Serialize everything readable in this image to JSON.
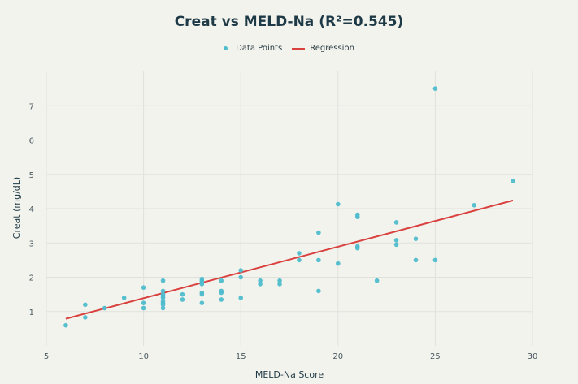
{
  "chart_data": {
    "type": "scatter",
    "title": "Creat vs MELD-Na (R²=0.545)",
    "xlabel": "MELD-Na Score",
    "ylabel": "Creat (mg/dL)",
    "xlim": [
      5,
      30
    ],
    "ylim": [
      0,
      8
    ],
    "xticks": [
      5,
      10,
      15,
      20,
      25,
      30
    ],
    "yticks": [
      1,
      2,
      3,
      4,
      5,
      6,
      7
    ],
    "grid": true,
    "legend_position": "top-center",
    "colors": {
      "points": "#4fbccc",
      "regression": "#d9413e",
      "grid": "#e1e1dc",
      "background": "#f3f3ee"
    },
    "series": [
      {
        "name": "Data Points",
        "x": [
          6,
          7,
          7,
          8,
          9,
          10,
          10,
          10,
          11,
          11,
          11,
          11,
          11,
          11,
          11,
          11,
          11,
          12,
          12,
          13,
          13,
          13,
          13,
          13,
          13,
          13,
          14,
          14,
          14,
          14,
          15,
          15,
          15,
          16,
          16,
          17,
          17,
          18,
          18,
          19,
          19,
          19,
          20,
          20,
          21,
          21,
          21,
          21,
          22,
          23,
          23,
          23,
          24,
          24,
          25,
          25,
          27,
          29
        ],
        "y": [
          0.6,
          0.83,
          1.2,
          1.1,
          1.4,
          1.7,
          1.25,
          1.1,
          1.9,
          1.6,
          1.5,
          1.45,
          1.4,
          1.3,
          1.25,
          1.2,
          1.1,
          1.5,
          1.35,
          1.95,
          1.9,
          1.85,
          1.8,
          1.55,
          1.5,
          1.25,
          1.9,
          1.6,
          1.55,
          1.35,
          2.2,
          2.0,
          1.4,
          1.9,
          1.8,
          1.9,
          1.8,
          2.7,
          2.5,
          3.3,
          2.5,
          1.6,
          4.13,
          2.4,
          3.82,
          3.76,
          2.9,
          2.85,
          1.9,
          3.6,
          3.08,
          2.95,
          3.12,
          2.5,
          7.5,
          2.5,
          4.1,
          4.8
        ]
      },
      {
        "name": "Regression",
        "x": [
          6,
          29
        ],
        "y": [
          0.79,
          4.24
        ]
      }
    ]
  }
}
